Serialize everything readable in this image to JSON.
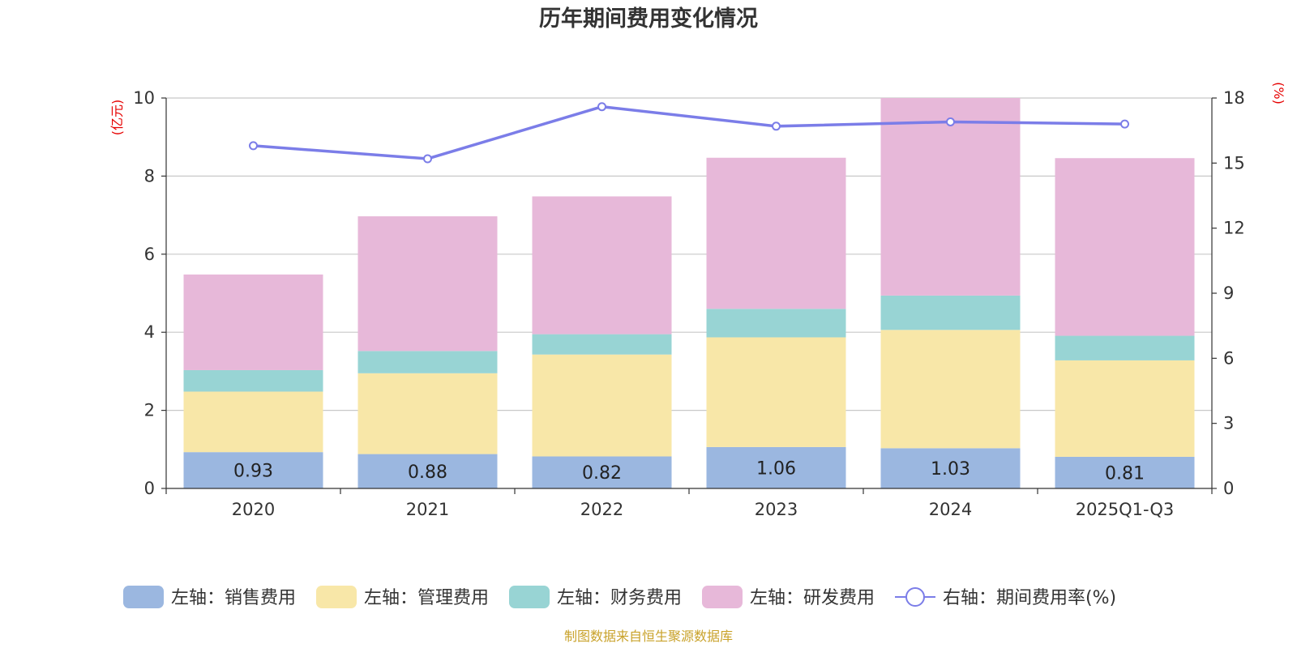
{
  "chart_data": {
    "type": "bar",
    "stacked": true,
    "title": "历年期间费用变化情况",
    "categories": [
      "2020",
      "2021",
      "2022",
      "2023",
      "2024",
      "2025Q1-Q3"
    ],
    "left_axis": {
      "unit": "(亿元)",
      "ylim": [
        0,
        10
      ],
      "ticks": [
        "0",
        "2",
        "4",
        "6",
        "8",
        "10"
      ]
    },
    "right_axis": {
      "unit": "(%)",
      "ylim": [
        0,
        18
      ],
      "ticks": [
        "0",
        "3",
        "6",
        "9",
        "12",
        "15",
        "18"
      ]
    },
    "grid": true,
    "legend_position": "bottom",
    "series": [
      {
        "name": "左轴：销售费用",
        "axis": "left",
        "color": "#9bb7e0",
        "values": [
          0.93,
          0.88,
          0.82,
          1.06,
          1.03,
          0.81
        ],
        "labels": [
          "0.93",
          "0.88",
          "0.82",
          "1.06",
          "1.03",
          "0.81"
        ]
      },
      {
        "name": "左轴：管理费用",
        "axis": "left",
        "color": "#f8e7a8",
        "values": [
          1.55,
          2.07,
          2.61,
          2.81,
          3.03,
          2.47
        ]
      },
      {
        "name": "左轴：财务费用",
        "axis": "left",
        "color": "#98d4d4",
        "values": [
          0.55,
          0.57,
          0.52,
          0.73,
          0.88,
          0.63
        ]
      },
      {
        "name": "左轴：研发费用",
        "axis": "left",
        "color": "#e7b8d9",
        "values": [
          2.45,
          3.45,
          3.53,
          3.87,
          5.06,
          4.55
        ]
      },
      {
        "name": "右轴：期间费用率(%)",
        "axis": "right",
        "type": "line",
        "color": "#7b7de8",
        "values": [
          15.8,
          15.2,
          17.6,
          16.7,
          16.9,
          16.8
        ]
      }
    ],
    "source": "制图数据来自恒生聚源数据库"
  }
}
